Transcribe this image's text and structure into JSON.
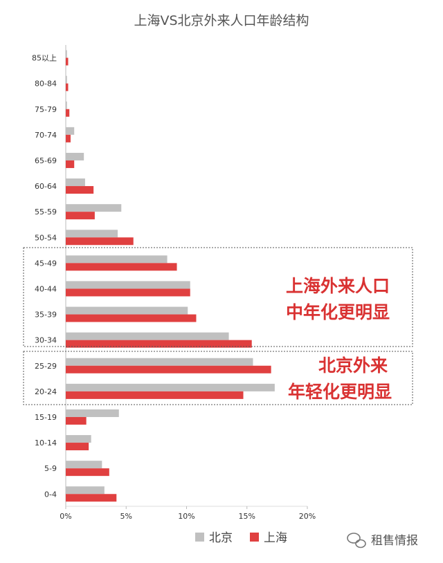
{
  "chart_data": {
    "type": "bar",
    "orientation": "horizontal",
    "title": "上海VS北京外来人口年龄结构",
    "categories": [
      "85以上",
      "80-84",
      "75-79",
      "70-74",
      "65-69",
      "60-64",
      "55-59",
      "50-54",
      "45-49",
      "40-44",
      "35-39",
      "30-34",
      "25-29",
      "20-24",
      "15-19",
      "10-14",
      "5-9",
      "0-4"
    ],
    "series": [
      {
        "name": "北京",
        "color": "#c0c0c0",
        "values": [
          0.1,
          0.1,
          0.1,
          0.7,
          1.5,
          1.6,
          4.6,
          4.3,
          8.4,
          10.3,
          10.1,
          13.5,
          15.5,
          17.3,
          4.4,
          2.1,
          3.0,
          3.2
        ]
      },
      {
        "name": "上海",
        "color": "#e04040",
        "values": [
          0.2,
          0.2,
          0.3,
          0.4,
          0.7,
          2.3,
          2.4,
          5.6,
          9.2,
          10.3,
          10.8,
          15.4,
          17.0,
          14.7,
          1.7,
          1.9,
          3.6,
          4.2
        ]
      }
    ],
    "xlim": [
      0,
      20
    ],
    "xticks": [
      "0%",
      "5%",
      "10%",
      "15%",
      "20%"
    ],
    "legend_position": "bottom",
    "annotations": [
      {
        "lines": [
          "上海外来人口",
          "中年化更明显"
        ],
        "color": "#d93232"
      },
      {
        "lines": [
          "北京外来",
          "年轻化更明显"
        ],
        "color": "#d93232"
      }
    ]
  },
  "watermark": "租售情报"
}
